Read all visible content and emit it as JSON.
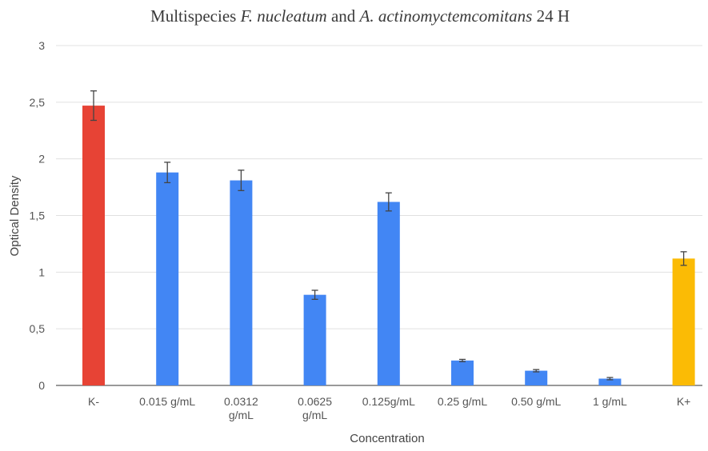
{
  "chart_data": {
    "type": "bar",
    "title_parts": [
      {
        "text": "Multispecies ",
        "italic": false
      },
      {
        "text": "F. nucleatum",
        "italic": true
      },
      {
        "text": " and ",
        "italic": false
      },
      {
        "text": "A. actinomyctemcomitans",
        "italic": true
      },
      {
        "text": " 24 H",
        "italic": false
      }
    ],
    "categories": [
      [
        "K-"
      ],
      [
        "0.015 g/mL"
      ],
      [
        "0.0312",
        "g/mL"
      ],
      [
        "0.0625",
        "g/mL"
      ],
      [
        "0.125g/mL"
      ],
      [
        "0.25 g/mL"
      ],
      [
        "0.50 g/mL"
      ],
      [
        "1 g/mL"
      ],
      [
        "K+"
      ]
    ],
    "values": [
      2.47,
      1.88,
      1.81,
      0.8,
      1.62,
      0.22,
      0.13,
      0.06,
      1.12
    ],
    "errors": [
      0.13,
      0.09,
      0.09,
      0.04,
      0.08,
      0.01,
      0.01,
      0.01,
      0.06
    ],
    "colors": [
      "#e74335",
      "#4286f4",
      "#4286f4",
      "#4286f4",
      "#4286f4",
      "#4286f4",
      "#4286f4",
      "#4286f4",
      "#fbbb05"
    ],
    "xlabel": "Concentration",
    "ylabel": "Optical Density",
    "ylim": [
      0,
      3
    ],
    "yticks": [
      0,
      0.5,
      1,
      1.5,
      2,
      2.5,
      3
    ],
    "ytick_labels": [
      "0",
      "0,5",
      "1",
      "1,5",
      "2",
      "2,5",
      "3"
    ],
    "grid": true,
    "legend": "none"
  }
}
